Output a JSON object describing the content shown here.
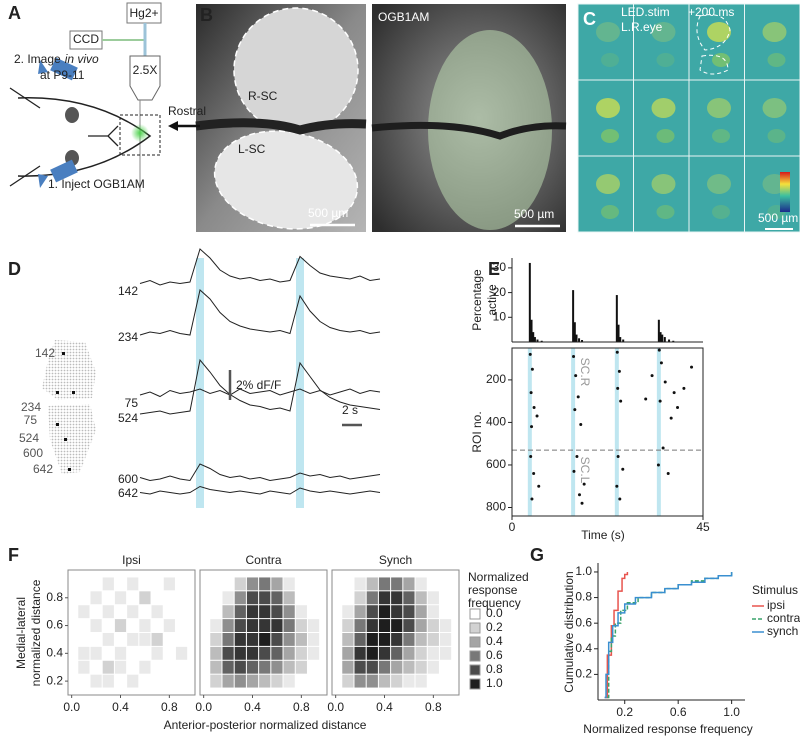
{
  "panel_labels": [
    "A",
    "B",
    "C",
    "D",
    "E",
    "F",
    "G"
  ],
  "panel_a": {
    "lamp": "Hg2+",
    "camera": "CCD",
    "image_step": "2. Image",
    "image_italic": "in vivo",
    "image_age": "at P9-11",
    "objective": "2.5X",
    "inject": "1. Inject OGB1AM"
  },
  "panel_b": {
    "right_sc": "R-SC",
    "rostral": "Rostral",
    "left_sc": "L-SC",
    "scale_left": "500 µm",
    "dye": "OGB1AM",
    "scale_right": "500 µm"
  },
  "panel_c": {
    "stim": "LED.stim",
    "eye": "L.R.eye",
    "delay": "+200 ms",
    "scale": "500 µm"
  },
  "chart_data": [
    {
      "type": "line",
      "x": [
        0,
        1,
        2,
        3,
        4,
        5,
        6,
        7,
        8,
        9,
        10,
        11,
        12,
        13,
        14,
        15,
        16,
        17,
        18,
        19,
        20,
        21,
        22,
        23,
        24
      ],
      "series": [
        {
          "name": "142",
          "values": [
            0.1,
            0.3,
            0.0,
            0.2,
            0.1,
            0.2,
            2.4,
            1.8,
            1.0,
            0.6,
            0.4,
            0.5,
            0.3,
            0.4,
            0.2,
            0.3,
            1.9,
            1.3,
            0.8,
            0.6,
            0.5,
            0.4,
            0.6,
            0.3,
            0.4
          ]
        },
        {
          "name": "234",
          "values": [
            0.0,
            0.2,
            0.1,
            0.3,
            0.1,
            0.0,
            3.0,
            2.4,
            1.5,
            0.9,
            0.6,
            0.4,
            0.3,
            0.2,
            0.3,
            0.1,
            2.6,
            1.6,
            0.9,
            0.5,
            0.3,
            0.2,
            0.3,
            0.1,
            0.2
          ]
        },
        {
          "name": "75",
          "values": [
            0.2,
            0.4,
            0.1,
            0.5,
            0.3,
            0.4,
            0.6,
            0.3,
            0.5,
            0.2,
            0.6,
            0.3,
            0.4,
            0.5,
            0.2,
            0.4,
            0.6,
            0.3,
            0.5,
            0.2,
            0.4,
            0.6,
            0.3,
            0.5,
            0.4
          ]
        },
        {
          "name": "524",
          "values": [
            0.0,
            0.1,
            0.2,
            0.0,
            0.1,
            0.2,
            3.6,
            2.8,
            1.9,
            1.3,
            0.9,
            0.6,
            0.5,
            0.3,
            0.4,
            0.2,
            3.4,
            2.5,
            1.6,
            1.1,
            0.8,
            0.6,
            0.5,
            0.4,
            0.3
          ]
        },
        {
          "name": "600",
          "values": [
            0.3,
            0.1,
            0.2,
            0.4,
            0.2,
            0.1,
            1.2,
            0.9,
            0.5,
            0.3,
            0.4,
            0.2,
            0.3,
            0.1,
            0.2,
            0.3,
            0.6,
            0.4,
            0.5,
            0.3,
            0.4,
            0.2,
            0.3,
            0.4,
            0.5
          ]
        },
        {
          "name": "642",
          "values": [
            0.1,
            0.0,
            0.2,
            0.1,
            0.0,
            0.1,
            0.5,
            0.3,
            0.2,
            0.1,
            0.2,
            0.1,
            0.0,
            0.2,
            0.1,
            0.0,
            0.4,
            0.2,
            0.1,
            0.2,
            0.1,
            0.0,
            0.1,
            0.2,
            0.1
          ]
        }
      ],
      "stim_times": [
        6,
        16
      ],
      "stim_duration": 0.8,
      "scale_bar_y": 2,
      "scale_bar_y_label": "2% dF/F",
      "scale_bar_x": 2,
      "scale_bar_x_label": "2 s"
    },
    {
      "type": "bar",
      "ylabel_lines": [
        "Percentage",
        "active"
      ],
      "x": [
        4.2,
        4.6,
        5.0,
        5.4,
        6,
        7,
        14.4,
        14.8,
        15.2,
        15.8,
        16.5,
        24.7,
        25.1,
        25.5,
        26.2,
        34.6,
        35.0,
        35.4,
        36,
        37,
        38
      ],
      "values": [
        32,
        9,
        4,
        2,
        1,
        0.5,
        21,
        8,
        3,
        1.5,
        0.8,
        19,
        7,
        2,
        1,
        9,
        4,
        3,
        2,
        1,
        0.5
      ],
      "color": "#111111",
      "xlim": [
        0,
        45
      ],
      "ylim": [
        0,
        34
      ],
      "yticks": [
        10,
        20,
        30
      ]
    },
    {
      "type": "scatter",
      "ylabel": "ROI no.",
      "xlabel": "Time (s)",
      "x": [
        4.3,
        4.8,
        4.5,
        5.2,
        4.6,
        5.9,
        4.4,
        5.1,
        6.3,
        4.7,
        14.5,
        15.0,
        15.6,
        14.8,
        16.2,
        15.3,
        14.6,
        17.0,
        15.9,
        16.5,
        24.8,
        25.3,
        24.9,
        25.6,
        25.0,
        26.1,
        24.7,
        25.4,
        34.7,
        35.2,
        36.1,
        34.9,
        37.5,
        33.0,
        38.2,
        35.6,
        39.0,
        34.5,
        36.8,
        31.5,
        40.5,
        42.3
      ],
      "y": [
        80,
        150,
        260,
        330,
        420,
        370,
        560,
        640,
        700,
        760,
        90,
        180,
        280,
        340,
        410,
        560,
        630,
        690,
        740,
        780,
        70,
        160,
        240,
        300,
        560,
        620,
        700,
        760,
        60,
        120,
        210,
        300,
        380,
        180,
        260,
        520,
        330,
        600,
        640,
        290,
        240,
        140
      ],
      "color": "#111111",
      "stim_times": [
        4.2,
        14.4,
        24.7,
        34.6
      ],
      "stim_color": "#bfe6f0",
      "divider": 530,
      "upper_label": "SC.R",
      "lower_label": "SC.L",
      "xlim": [
        0,
        45
      ],
      "xticks": [
        0,
        45
      ],
      "ylim": [
        840,
        50
      ],
      "yticks": [
        200,
        400,
        600,
        800
      ]
    },
    {
      "type": "heatmap",
      "xlabel": "Anterior-posterior normalized distance",
      "ylabel_lines": [
        "Medial-lateral",
        "normalized distance"
      ],
      "x": [
        0.1,
        0.2,
        0.3,
        0.4,
        0.5,
        0.6,
        0.7,
        0.8,
        0.9
      ],
      "y": [
        0.9,
        0.8,
        0.7,
        0.6,
        0.5,
        0.4,
        0.3,
        0.2
      ],
      "xlim": [
        -0.03,
        1.01
      ],
      "ylim": [
        0.1,
        1.0
      ],
      "xticks": [
        {
          "value": 0,
          "label": "0.0"
        },
        0.4,
        0.8
      ],
      "yticks": [
        0.2,
        0.4,
        0.6,
        0.8
      ],
      "panels": [
        {
          "title": "Ipsi",
          "values": [
            [
              0,
              0,
              0.1,
              0,
              0.1,
              0,
              0,
              0.1,
              0
            ],
            [
              0,
              0.1,
              0,
              0.1,
              0,
              0.2,
              0,
              0,
              0
            ],
            [
              0.1,
              0,
              0.1,
              0,
              0.1,
              0,
              0.1,
              0,
              0
            ],
            [
              0,
              0.1,
              0,
              0.2,
              0,
              0.1,
              0,
              0.1,
              0
            ],
            [
              0,
              0,
              0.1,
              0,
              0.1,
              0.1,
              0.2,
              0,
              0
            ],
            [
              0.1,
              0.1,
              0,
              0.1,
              0,
              0,
              0.1,
              0,
              0.1
            ],
            [
              0.1,
              0,
              0.2,
              0.1,
              0,
              0.1,
              0,
              0,
              0
            ],
            [
              0,
              0.1,
              0.1,
              0,
              0.1,
              0,
              0,
              0,
              0
            ]
          ]
        },
        {
          "title": "Contra",
          "values": [
            [
              0,
              0,
              0.2,
              0.5,
              0.6,
              0.4,
              0.1,
              0,
              0
            ],
            [
              0,
              0.1,
              0.5,
              0.8,
              0.8,
              0.7,
              0.3,
              0,
              0
            ],
            [
              0,
              0.3,
              0.7,
              0.9,
              0.9,
              0.8,
              0.5,
              0.1,
              0
            ],
            [
              0.1,
              0.5,
              0.8,
              0.9,
              0.9,
              0.9,
              0.6,
              0.2,
              0.1
            ],
            [
              0.2,
              0.6,
              0.9,
              0.9,
              1.0,
              0.8,
              0.5,
              0.3,
              0.1
            ],
            [
              0.3,
              0.8,
              0.9,
              0.9,
              0.8,
              0.7,
              0.4,
              0.2,
              0.1
            ],
            [
              0.3,
              0.7,
              0.8,
              0.7,
              0.6,
              0.5,
              0.3,
              0.2,
              0
            ],
            [
              0.2,
              0.4,
              0.5,
              0.4,
              0.3,
              0.2,
              0.1,
              0,
              0
            ]
          ]
        },
        {
          "title": "Synch",
          "values": [
            [
              0,
              0.1,
              0.3,
              0.6,
              0.6,
              0.4,
              0.1,
              0,
              0
            ],
            [
              0,
              0.2,
              0.6,
              0.9,
              0.9,
              0.7,
              0.3,
              0.1,
              0
            ],
            [
              0.1,
              0.4,
              0.8,
              1.0,
              0.9,
              0.8,
              0.4,
              0.1,
              0
            ],
            [
              0.2,
              0.6,
              0.9,
              1.0,
              1.0,
              0.8,
              0.4,
              0.2,
              0.1
            ],
            [
              0.3,
              0.7,
              1.0,
              1.0,
              0.9,
              0.6,
              0.3,
              0.2,
              0.1
            ],
            [
              0.4,
              0.9,
              1.0,
              0.9,
              0.7,
              0.4,
              0.2,
              0.1,
              0.1
            ],
            [
              0.4,
              0.8,
              0.8,
              0.6,
              0.4,
              0.3,
              0.2,
              0.1,
              0
            ],
            [
              0.2,
              0.5,
              0.5,
              0.3,
              0.2,
              0.1,
              0.1,
              0,
              0
            ]
          ]
        }
      ],
      "legend_title_lines": [
        "Normalized",
        "response",
        "frequency"
      ],
      "legend_levels": [
        {
          "value": 0,
          "label": "0.0"
        },
        0.2,
        0.4,
        0.6,
        0.8,
        {
          "value": 1,
          "label": "1.0"
        }
      ]
    },
    {
      "type": "step",
      "ylabel": "Cumulative distribution",
      "xlabel": "Normalized response frequency",
      "legend_title": "Stimulus",
      "series": [
        {
          "name": "ipsi",
          "color": "#e8544e",
          "dash": false,
          "x": [
            0.05,
            0.07,
            0.1,
            0.12,
            0.15,
            0.18,
            0.2,
            0.22
          ],
          "values": [
            0.02,
            0.35,
            0.58,
            0.7,
            0.85,
            0.95,
            0.98,
            1.0
          ]
        },
        {
          "name": "contra",
          "color": "#3aa36b",
          "dash": true,
          "x": [
            0.07,
            0.08,
            0.1,
            0.13,
            0.17,
            0.22,
            0.3,
            0.4,
            0.5,
            0.6,
            0.7,
            0.8,
            0.9,
            1.0
          ],
          "values": [
            0.02,
            0.38,
            0.5,
            0.6,
            0.7,
            0.76,
            0.8,
            0.84,
            0.87,
            0.9,
            0.93,
            0.95,
            0.97,
            1.0
          ]
        },
        {
          "name": "synch",
          "color": "#3a8fd0",
          "dash": false,
          "x": [
            0.05,
            0.06,
            0.08,
            0.11,
            0.15,
            0.2,
            0.28,
            0.4,
            0.5,
            0.6,
            0.7,
            0.8,
            0.9,
            1.0
          ],
          "values": [
            0.02,
            0.2,
            0.45,
            0.58,
            0.68,
            0.75,
            0.8,
            0.84,
            0.87,
            0.9,
            0.92,
            0.95,
            0.97,
            1.0
          ]
        }
      ],
      "xlim": [
        0,
        1.1
      ],
      "ylim": [
        0,
        1.07
      ],
      "xticks": [
        0.2,
        0.6,
        {
          "value": 1,
          "label": "1.0"
        }
      ],
      "yticks": [
        0.2,
        0.4,
        0.6,
        0.8,
        {
          "value": 1,
          "label": "1.0"
        }
      ]
    }
  ]
}
